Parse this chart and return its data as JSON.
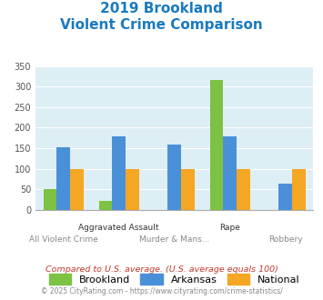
{
  "title_line1": "2019 Brookland",
  "title_line2": "Violent Crime Comparison",
  "title_color": "#1a7abf",
  "categories": [
    "All Violent Crime",
    "Aggravated Assault",
    "Murder & Mans...",
    "Rape",
    "Robbery"
  ],
  "brookland": [
    50,
    22,
    0,
    315,
    0
  ],
  "arkansas": [
    153,
    180,
    160,
    180,
    63
  ],
  "national": [
    100,
    100,
    100,
    100,
    100
  ],
  "bar_color_brookland": "#7dc242",
  "bar_color_arkansas": "#4a90d9",
  "bar_color_national": "#f5a623",
  "ylim": [
    0,
    350
  ],
  "yticks": [
    0,
    50,
    100,
    150,
    200,
    250,
    300,
    350
  ],
  "legend_labels": [
    "Brookland",
    "Arkansas",
    "National"
  ],
  "footnote1": "Compared to U.S. average. (U.S. average equals 100)",
  "footnote2": "© 2025 CityRating.com - https://www.cityrating.com/crime-statistics/",
  "footnote1_color": "#c0392b",
  "footnote2_color": "#888888",
  "bg_color": "#ddeef5"
}
